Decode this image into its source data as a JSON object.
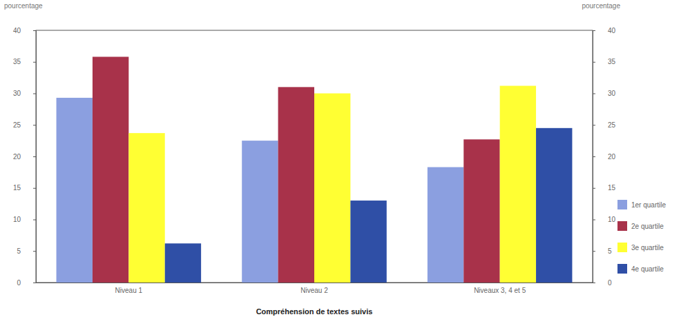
{
  "chart_data": {
    "type": "bar",
    "x_label": "Compréhension de textes suivis",
    "y_label": "pourcentage",
    "y2_label": "pourcentage",
    "categories": [
      "Niveau 1",
      "Niveau 2",
      "Niveaux 3, 4 et 5"
    ],
    "series": [
      {
        "name": "1er quartile",
        "color": "#8b9fe0",
        "values": [
          29.3,
          22.5,
          18.3
        ]
      },
      {
        "name": "2e quartile",
        "color": "#a8324a",
        "values": [
          35.8,
          31.0,
          22.7
        ]
      },
      {
        "name": "3e quartile",
        "color": "#ffff33",
        "values": [
          23.7,
          30.0,
          31.2
        ]
      },
      {
        "name": "4e quartile",
        "color": "#2f4fa6",
        "values": [
          6.2,
          13.0,
          24.5
        ]
      }
    ],
    "ylim": [
      0,
      40
    ],
    "yticks": [
      0,
      5,
      10,
      15,
      20,
      25,
      30,
      35,
      40
    ],
    "y2lim": [
      0,
      40
    ],
    "y2ticks": [
      0,
      5,
      10,
      15,
      20,
      25,
      30,
      35,
      40
    ],
    "grid": false,
    "legend": "right"
  }
}
